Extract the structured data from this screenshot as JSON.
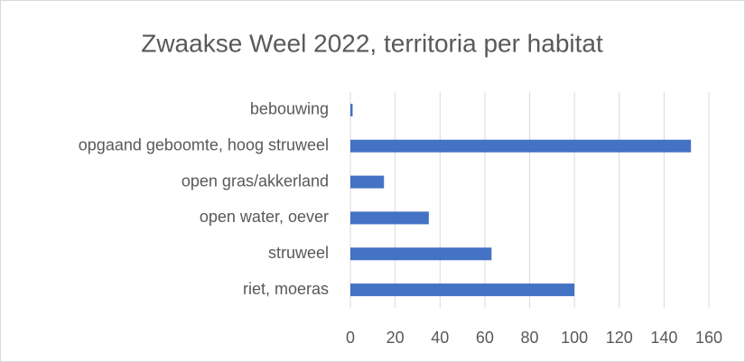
{
  "chart_data": {
    "type": "bar",
    "orientation": "horizontal",
    "title": "Zwaakse Weel 2022, territoria per habitat",
    "categories": [
      "bebouwing",
      "opgaand geboomte, hoog struweel",
      "open gras/akkerland",
      "open water, oever",
      "struweel",
      "riet, moeras"
    ],
    "values": [
      1,
      152,
      15,
      35,
      63,
      100
    ],
    "color": "#4472c4",
    "xlim": [
      0,
      160
    ],
    "xticks": [
      0,
      20,
      40,
      60,
      80,
      100,
      120,
      140,
      160
    ],
    "grid": true
  }
}
